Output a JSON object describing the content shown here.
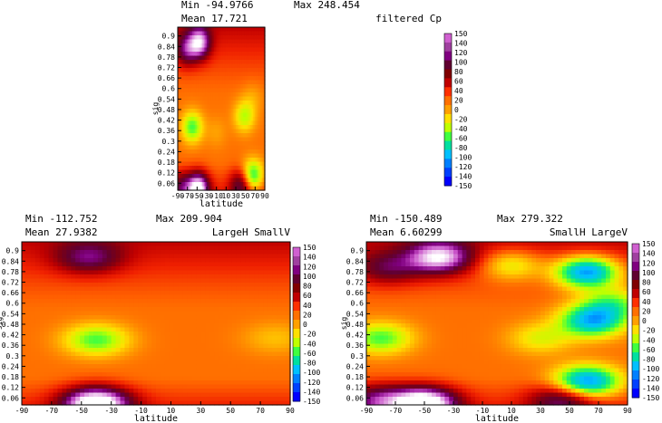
{
  "colorbar": {
    "labels": [
      "150",
      "140",
      "120",
      "100",
      "80",
      "60",
      "40",
      "20",
      "0",
      "-20",
      "-40",
      "-60",
      "-80",
      "-100",
      "-120",
      "-140",
      "-150"
    ],
    "colors": [
      "#d060d0",
      "#a040a0",
      "#800080",
      "#600030",
      "#800000",
      "#c00000",
      "#ff3000",
      "#ff7000",
      "#ffa000",
      "#ffe000",
      "#c0ff00",
      "#40ff40",
      "#00e0a0",
      "#00c0ff",
      "#0080ff",
      "#0040ff",
      "#0000ff"
    ]
  },
  "chart_data": [
    {
      "type": "heatmap",
      "title": "filtered Cp",
      "stats": {
        "min_label": "Min",
        "min": "-94.9766",
        "max_label": "Max",
        "max": "248.454",
        "mean_label": "Mean",
        "mean": "17.721"
      },
      "xlabel": "latitude",
      "ylabel": "sig",
      "xlim": [
        -90,
        90
      ],
      "ylim": [
        0.02,
        0.95
      ],
      "xticks": [
        "-90",
        "-70",
        "-50",
        "-30",
        "-10",
        "10",
        "30",
        "50",
        "70",
        "90"
      ],
      "yticks": [
        "0.9",
        "0.84",
        "0.78",
        "0.72",
        "0.66",
        "0.6",
        "0.54",
        "0.48",
        "0.42",
        "0.36",
        "0.3",
        "0.24",
        "0.18",
        "0.12",
        "0.06"
      ],
      "color_scale": [
        -150,
        150
      ],
      "features": [
        {
          "lat": -45,
          "sig": 0.86,
          "value": 160
        },
        {
          "lat": -72,
          "sig": 0.82,
          "value": 110
        },
        {
          "lat": -60,
          "sig": 0.38,
          "value": -40
        },
        {
          "lat": -10,
          "sig": 0.35,
          "value": 20
        },
        {
          "lat": 48,
          "sig": 0.44,
          "value": -20
        },
        {
          "lat": 65,
          "sig": 0.55,
          "value": 20
        },
        {
          "lat": 65,
          "sig": 0.1,
          "value": -60
        },
        {
          "lat": -48,
          "sig": 0.03,
          "value": 200
        },
        {
          "lat": 40,
          "sig": 0.05,
          "value": 110
        },
        {
          "lat": -82,
          "sig": 0.04,
          "value": 100
        }
      ]
    },
    {
      "type": "heatmap",
      "title": "LargeH SmallV",
      "stats": {
        "min_label": "Min",
        "min": "-112.752",
        "max_label": "Max",
        "max": "209.904",
        "mean_label": "Mean",
        "mean": "27.9382"
      },
      "xlabel": "latitude",
      "ylabel": "sig",
      "xlim": [
        -90,
        90
      ],
      "ylim": [
        0.02,
        0.95
      ],
      "xticks": [
        "-90",
        "-70",
        "-50",
        "-30",
        "-10",
        "10",
        "30",
        "50",
        "70",
        "90"
      ],
      "yticks": [
        "0.9",
        "0.84",
        "0.78",
        "0.72",
        "0.66",
        "0.6",
        "0.54",
        "0.48",
        "0.42",
        "0.36",
        "0.3",
        "0.24",
        "0.18",
        "0.12",
        "0.06"
      ],
      "color_scale": [
        -150,
        150
      ],
      "features": [
        {
          "lat": -45,
          "sig": 0.86,
          "value": 110
        },
        {
          "lat": -40,
          "sig": 0.39,
          "value": -40
        },
        {
          "lat": 80,
          "sig": 0.4,
          "value": 10
        },
        {
          "lat": -40,
          "sig": 0.03,
          "value": 220
        }
      ]
    },
    {
      "type": "heatmap",
      "title": "SmallH LargeV",
      "stats": {
        "min_label": "Min",
        "min": "-150.489",
        "max_label": "Max",
        "max": "279.322",
        "mean_label": "Mean",
        "mean": "6.60299"
      },
      "xlabel": "latitude",
      "ylabel": "sig",
      "xlim": [
        -90,
        90
      ],
      "ylim": [
        0.02,
        0.95
      ],
      "xticks": [
        "-90",
        "-70",
        "-50",
        "-30",
        "-10",
        "10",
        "30",
        "50",
        "70",
        "90"
      ],
      "yticks": [
        "0.9",
        "0.84",
        "0.78",
        "0.72",
        "0.66",
        "0.6",
        "0.54",
        "0.48",
        "0.42",
        "0.36",
        "0.3",
        "0.24",
        "0.18",
        "0.12",
        "0.06"
      ],
      "color_scale": [
        -150,
        150
      ],
      "features": [
        {
          "lat": -40,
          "sig": 0.86,
          "value": 170
        },
        {
          "lat": -75,
          "sig": 0.8,
          "value": 100
        },
        {
          "lat": -80,
          "sig": 0.4,
          "value": -40
        },
        {
          "lat": 10,
          "sig": 0.82,
          "value": -30
        },
        {
          "lat": 62,
          "sig": 0.78,
          "value": -120
        },
        {
          "lat": 66,
          "sig": 0.5,
          "value": -90
        },
        {
          "lat": 62,
          "sig": 0.15,
          "value": -110
        },
        {
          "lat": 80,
          "sig": 0.6,
          "value": -30
        },
        {
          "lat": 30,
          "sig": 0.4,
          "value": -10
        },
        {
          "lat": -50,
          "sig": 0.03,
          "value": 220
        },
        {
          "lat": -82,
          "sig": 0.05,
          "value": 120
        },
        {
          "lat": 45,
          "sig": 0.05,
          "value": 120
        }
      ]
    }
  ]
}
